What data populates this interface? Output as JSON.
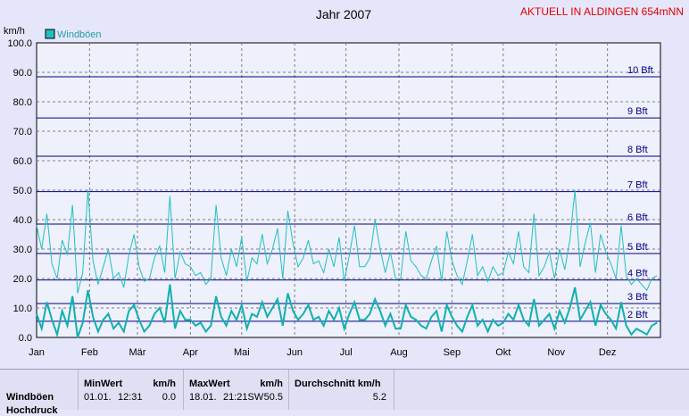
{
  "header": {
    "title": "Jahr 2007",
    "status": "AKTUELL IN ALDINGEN 654mNN"
  },
  "colors": {
    "background": "#e6e6fa",
    "plot_bg": "#eef0fb",
    "gust_line": "#20c0c0",
    "avg_line": "#10b0b0",
    "beaufort_line": "#000080",
    "grid": "#808080"
  },
  "chart_data": {
    "type": "line",
    "title": "Jahr 2007",
    "ylabel": "km/h",
    "ylim": [
      0,
      100
    ],
    "yticks": [
      "0.0",
      "10.0",
      "20.0",
      "30.0",
      "40.0",
      "50.0",
      "60.0",
      "70.0",
      "80.0",
      "90.0",
      "100.0"
    ],
    "months": [
      "Jan",
      "Feb",
      "Mär",
      "Apr",
      "Mai",
      "Jun",
      "Jul",
      "Aug",
      "Sep",
      "Okt",
      "Nov",
      "Dez"
    ],
    "legend": [
      "Windböen"
    ],
    "grid": true,
    "beaufort": [
      {
        "label": "2 Bft",
        "value": 5.5
      },
      {
        "label": "3 Bft",
        "value": 11.5
      },
      {
        "label": "4 Bft",
        "value": 19.5
      },
      {
        "label": "5 Bft",
        "value": 28.5
      },
      {
        "label": "6 Bft",
        "value": 38.5
      },
      {
        "label": "7 Bft",
        "value": 49.5
      },
      {
        "label": "8 Bft",
        "value": 61.5
      },
      {
        "label": "9 Bft",
        "value": 74.5
      },
      {
        "label": "10 Bft",
        "value": 88.5
      }
    ],
    "series": [
      {
        "name": "Windböen",
        "x": [
          0,
          3,
          6,
          9,
          12,
          15,
          18,
          21,
          24,
          27,
          30,
          33,
          36,
          39,
          42,
          45,
          48,
          51,
          54,
          57,
          60,
          63,
          66,
          69,
          72,
          75,
          78,
          81,
          84,
          87,
          90,
          93,
          96,
          99,
          102,
          105,
          108,
          111,
          114,
          117,
          120,
          123,
          126,
          129,
          132,
          135,
          138,
          141,
          144,
          147,
          150,
          153,
          156,
          159,
          162,
          165,
          168,
          171,
          174,
          177,
          180,
          183,
          186,
          189,
          192,
          195,
          198,
          201,
          204,
          207,
          210,
          213,
          216,
          219,
          222,
          225,
          228,
          231,
          234,
          237,
          240,
          243,
          246,
          249,
          252,
          255,
          258,
          261,
          264,
          267,
          270,
          273,
          276,
          279,
          282,
          285,
          288,
          291,
          294,
          297,
          300,
          303,
          306,
          309,
          312,
          315,
          318,
          321,
          324,
          327,
          330,
          333,
          336,
          339,
          342,
          345,
          348,
          351,
          354,
          357,
          360,
          363
        ],
        "values": [
          38,
          30,
          42,
          25,
          20,
          33,
          28,
          45,
          15,
          22,
          50,
          26,
          18,
          24,
          30,
          20,
          22,
          17,
          28,
          35,
          24,
          19,
          20,
          27,
          31,
          22,
          48,
          20,
          29,
          25,
          24,
          21,
          22,
          18,
          20,
          45,
          27,
          21,
          30,
          24,
          34,
          19,
          27,
          25,
          35,
          25,
          30,
          37,
          20,
          43,
          32,
          24,
          27,
          33,
          25,
          26,
          22,
          30,
          24,
          34,
          19,
          28,
          38,
          24,
          24,
          27,
          40,
          30,
          22,
          29,
          20,
          20,
          36,
          26,
          24,
          21,
          20,
          26,
          31,
          19,
          36,
          26,
          21,
          18,
          26,
          35,
          21,
          24,
          19,
          24,
          21,
          22,
          29,
          25,
          36,
          24,
          22,
          42,
          21,
          24,
          29,
          20,
          30,
          23,
          33,
          50,
          24,
          32,
          39,
          22,
          35,
          29,
          25,
          20,
          38,
          21,
          18,
          20,
          18,
          16,
          20,
          21
        ]
      },
      {
        "name": "",
        "x": [
          0,
          3,
          6,
          9,
          12,
          15,
          18,
          21,
          24,
          27,
          30,
          33,
          36,
          39,
          42,
          45,
          48,
          51,
          54,
          57,
          60,
          63,
          66,
          69,
          72,
          75,
          78,
          81,
          84,
          87,
          90,
          93,
          96,
          99,
          102,
          105,
          108,
          111,
          114,
          117,
          120,
          123,
          126,
          129,
          132,
          135,
          138,
          141,
          144,
          147,
          150,
          153,
          156,
          159,
          162,
          165,
          168,
          171,
          174,
          177,
          180,
          183,
          186,
          189,
          192,
          195,
          198,
          201,
          204,
          207,
          210,
          213,
          216,
          219,
          222,
          225,
          228,
          231,
          234,
          237,
          240,
          243,
          246,
          249,
          252,
          255,
          258,
          261,
          264,
          267,
          270,
          273,
          276,
          279,
          282,
          285,
          288,
          291,
          294,
          297,
          300,
          303,
          306,
          309,
          312,
          315,
          318,
          321,
          324,
          327,
          330,
          333,
          336,
          339,
          342,
          345,
          348,
          351,
          354,
          357,
          360,
          363
        ],
        "values": [
          8,
          3,
          12,
          6,
          1,
          9,
          4,
          14,
          0,
          5,
          16,
          7,
          2,
          6,
          8,
          3,
          5,
          2,
          9,
          11,
          6,
          2,
          4,
          8,
          10,
          5,
          18,
          3,
          9,
          6,
          6,
          4,
          5,
          2,
          4,
          14,
          7,
          4,
          9,
          6,
          11,
          3,
          8,
          7,
          12,
          7,
          10,
          13,
          4,
          15,
          9,
          6,
          8,
          11,
          6,
          7,
          4,
          9,
          6,
          10,
          3,
          8,
          12,
          6,
          6,
          8,
          13,
          9,
          4,
          8,
          3,
          3,
          11,
          7,
          6,
          4,
          3,
          7,
          9,
          2,
          11,
          7,
          4,
          2,
          7,
          11,
          4,
          6,
          2,
          6,
          4,
          5,
          8,
          6,
          11,
          6,
          4,
          13,
          4,
          6,
          8,
          3,
          9,
          5,
          10,
          17,
          6,
          9,
          12,
          4,
          11,
          8,
          6,
          3,
          12,
          4,
          1,
          3,
          2,
          1,
          4,
          5
        ]
      }
    ]
  },
  "stats": {
    "row_label_1": "Windböen",
    "row_label_2": "Hochdruck",
    "min_header": "MinWert",
    "min_unit": "km/h",
    "min_date": "01.01.",
    "min_time": "12:31",
    "min_value": "0.0",
    "max_header": "MaxWert",
    "max_unit": "km/h",
    "max_date": "18.01.",
    "max_time": "21:21SW",
    "max_value": "50.5",
    "avg_header": "Durchschnitt km/h",
    "avg_value": "5.2"
  }
}
